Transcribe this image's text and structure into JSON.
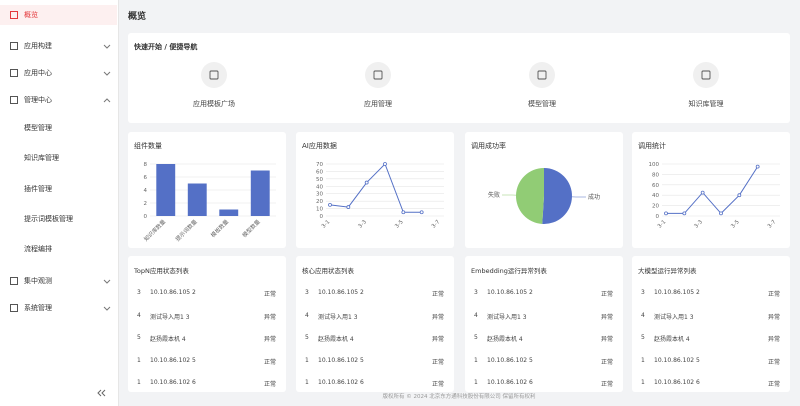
{
  "sidebar": {
    "items": [
      {
        "label": "概览"
      },
      {
        "label": "应用构建"
      },
      {
        "label": "应用中心"
      },
      {
        "label": "管理中心",
        "children": [
          "模型管理",
          "知识库管理",
          "插件管理",
          "提示词模板管理",
          "流程编排"
        ]
      },
      {
        "label": "集中观测"
      },
      {
        "label": "系统管理"
      }
    ]
  },
  "header": {
    "title": "概览"
  },
  "quick_nav": {
    "title": "快速开始 / 便捷导航",
    "items": [
      "应用模板广场",
      "应用管理",
      "模型管理",
      "知识库管理"
    ]
  },
  "chart_data": [
    {
      "type": "bar",
      "title": "组件数量",
      "categories": [
        "知识库数量",
        "提示词数量",
        "模板数量",
        "模型数量"
      ],
      "values": [
        8,
        5,
        1,
        7
      ],
      "color": "#5470c6",
      "ylim": [
        0,
        8
      ],
      "yticks": [
        0,
        2,
        4,
        6,
        8
      ],
      "grid": true
    },
    {
      "type": "line",
      "title": "AI应用数据",
      "categories": [
        "3-1",
        null,
        "3-3",
        null,
        "3-5",
        null,
        "3-7"
      ],
      "values": [
        15,
        12,
        45,
        70,
        5,
        5,
        null
      ],
      "color": "#5470c6",
      "ylim": [
        0,
        70
      ],
      "yticks": [
        0,
        10,
        20,
        30,
        40,
        50,
        60,
        70
      ],
      "grid": true
    },
    {
      "type": "pie",
      "title": "调用成功率",
      "categories": [
        "成功",
        "失败"
      ],
      "values": [
        51,
        49
      ],
      "colors": [
        "#5470c6",
        "#91cc75"
      ]
    },
    {
      "type": "line",
      "title": "调用统计",
      "categories": [
        "3-1",
        null,
        "3-3",
        null,
        "3-5",
        null,
        "3-7"
      ],
      "values": [
        5,
        5,
        45,
        5,
        40,
        95,
        null
      ],
      "color": "#5470c6",
      "ylim": [
        0,
        100
      ],
      "yticks": [
        0,
        20,
        40,
        60,
        80,
        100
      ],
      "grid": true
    }
  ],
  "tables": [
    {
      "title": "TopN应用状态列表",
      "rows": [
        [
          "3",
          "10.10.86.105 2",
          "正常"
        ],
        [
          "4",
          "测试导入用1 3",
          "异常"
        ],
        [
          "5",
          "赵扬霞本机 4",
          "异常"
        ],
        [
          "1",
          "10.10.86.102 5",
          "正常"
        ],
        [
          "1",
          "10.10.86.102 6",
          "正常"
        ]
      ]
    },
    {
      "title": "核心应用状态列表",
      "rows": [
        [
          "3",
          "10.10.86.105 2",
          "正常"
        ],
        [
          "4",
          "测试导入用1 3",
          "异常"
        ],
        [
          "5",
          "赵扬霞本机 4",
          "异常"
        ],
        [
          "1",
          "10.10.86.102 5",
          "正常"
        ],
        [
          "1",
          "10.10.86.102 6",
          "正常"
        ]
      ]
    },
    {
      "title": "Embedding运行异常列表",
      "rows": [
        [
          "3",
          "10.10.86.105 2",
          "正常"
        ],
        [
          "4",
          "测试导入用1 3",
          "异常"
        ],
        [
          "5",
          "赵扬霞本机 4",
          "异常"
        ],
        [
          "1",
          "10.10.86.102 5",
          "正常"
        ],
        [
          "1",
          "10.10.86.102 6",
          "正常"
        ]
      ]
    },
    {
      "title": "大模型运行异常列表",
      "rows": [
        [
          "3",
          "10.10.86.105 2",
          "正常"
        ],
        [
          "4",
          "测试导入用1 3",
          "异常"
        ],
        [
          "5",
          "赵扬霞本机 4",
          "异常"
        ],
        [
          "1",
          "10.10.86.102 5",
          "正常"
        ],
        [
          "1",
          "10.10.86.102 6",
          "正常"
        ]
      ]
    }
  ],
  "footer": "版权所有 © 2024 北京东方通科技股份有限公司 保留所有权利"
}
